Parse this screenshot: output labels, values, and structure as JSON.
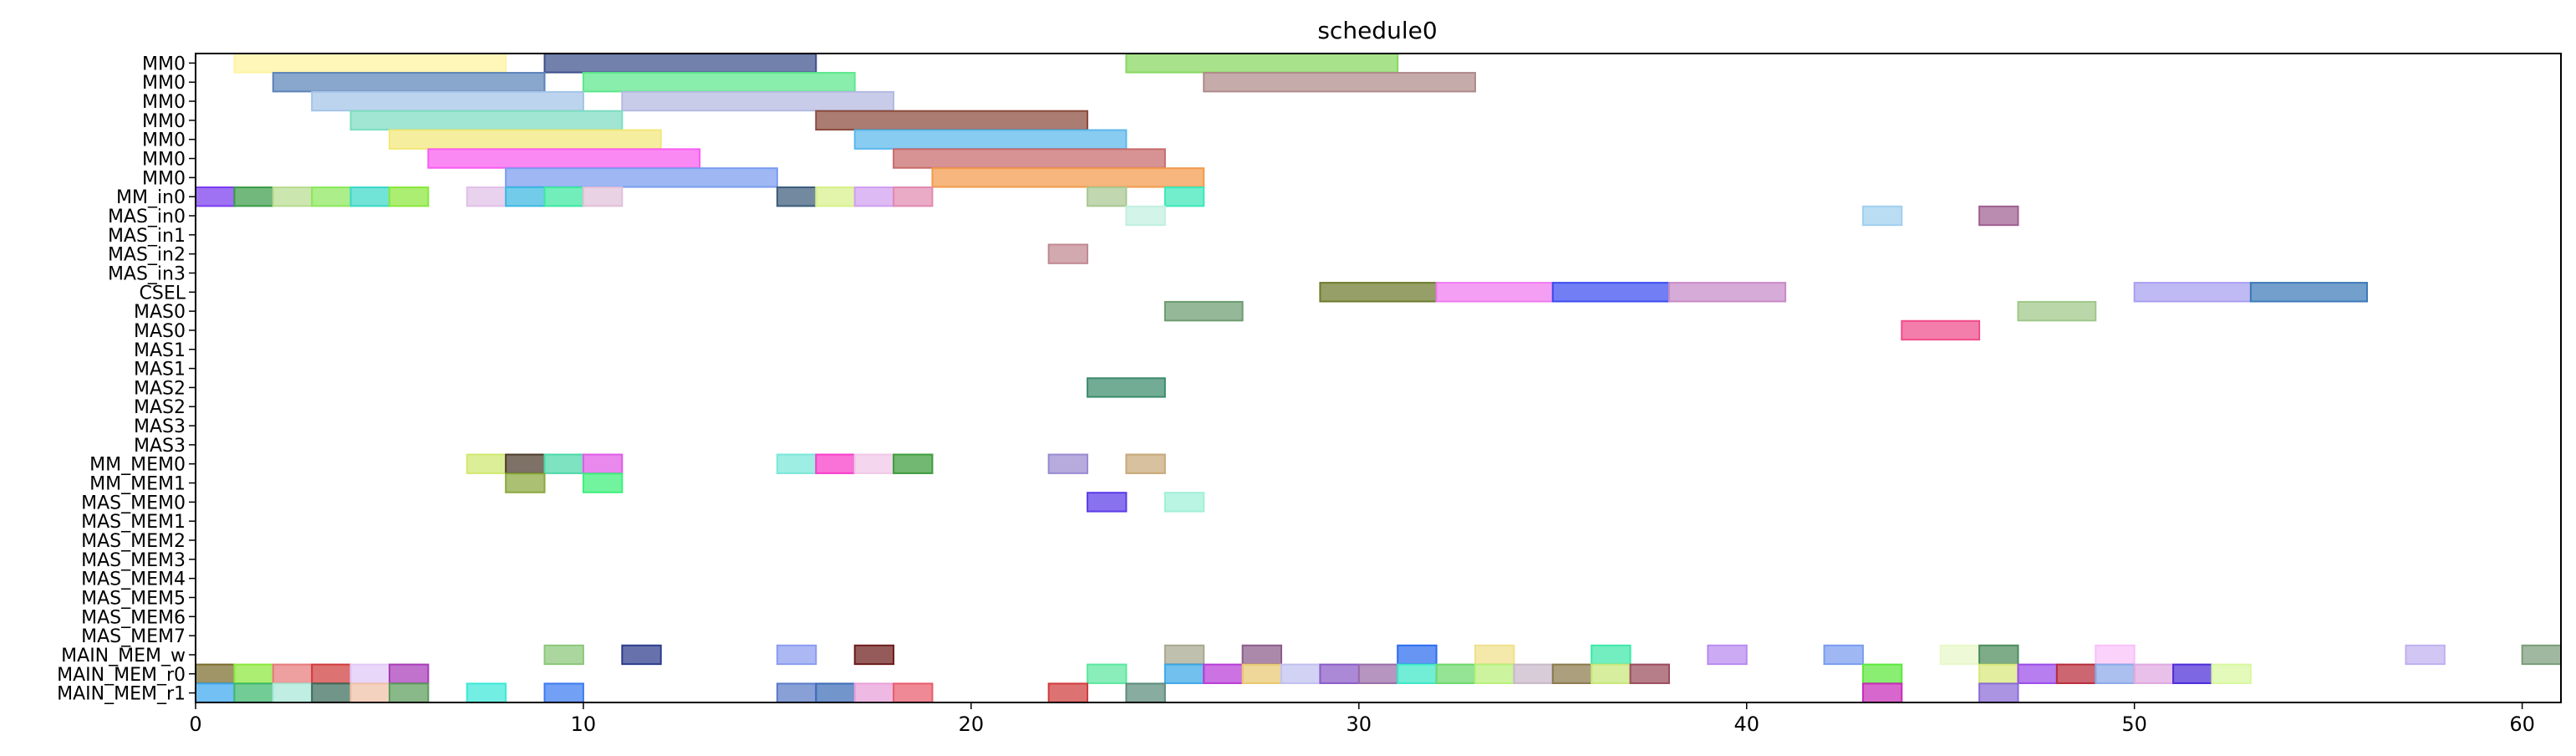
{
  "chart_data": {
    "type": "gantt",
    "title": "schedule0",
    "xlabel": "",
    "ylabel": "",
    "xlim": [
      0,
      61
    ],
    "xticks": [
      0,
      10,
      20,
      30,
      40,
      50,
      60
    ],
    "grid": false,
    "rows": [
      "MM0",
      "MM0",
      "MM0",
      "MM0",
      "MM0",
      "MM0",
      "MM0",
      "MM_in0",
      "MAS_in0",
      "MAS_in1",
      "MAS_in2",
      "MAS_in3",
      "CSEL",
      "MAS0",
      "MAS0",
      "MAS1",
      "MAS1",
      "MAS2",
      "MAS2",
      "MAS3",
      "MAS3",
      "MM_MEM0",
      "MM_MEM1",
      "MAS_MEM0",
      "MAS_MEM1",
      "MAS_MEM2",
      "MAS_MEM3",
      "MAS_MEM4",
      "MAS_MEM5",
      "MAS_MEM6",
      "MAS_MEM7",
      "MAIN_MEM_w",
      "MAIN_MEM_r0",
      "MAIN_MEM_r1"
    ],
    "tasks": [
      {
        "row": 0,
        "start": 1,
        "end": 8,
        "color": "#fff3a0"
      },
      {
        "row": 0,
        "start": 9,
        "end": 16,
        "color": "#3c4f8c"
      },
      {
        "row": 0,
        "start": 24,
        "end": 31,
        "color": "#86d860"
      },
      {
        "row": 1,
        "start": 2,
        "end": 9,
        "color": "#5c84b8"
      },
      {
        "row": 1,
        "start": 10,
        "end": 17,
        "color": "#5be88a"
      },
      {
        "row": 1,
        "start": 26,
        "end": 33,
        "color": "#b08a8a"
      },
      {
        "row": 2,
        "start": 3,
        "end": 10,
        "color": "#a3c4e8"
      },
      {
        "row": 2,
        "start": 11,
        "end": 18,
        "color": "#b3b9e0"
      },
      {
        "row": 3,
        "start": 4,
        "end": 11,
        "color": "#7ddcc0"
      },
      {
        "row": 3,
        "start": 16,
        "end": 23,
        "color": "#8a4a3c"
      },
      {
        "row": 4,
        "start": 5,
        "end": 12,
        "color": "#f2e87a"
      },
      {
        "row": 4,
        "start": 17,
        "end": 24,
        "color": "#5cb8ec"
      },
      {
        "row": 5,
        "start": 6,
        "end": 13,
        "color": "#f95cf0"
      },
      {
        "row": 5,
        "start": 18,
        "end": 25,
        "color": "#c86a6a"
      },
      {
        "row": 6,
        "start": 8,
        "end": 15,
        "color": "#7a9cf0"
      },
      {
        "row": 6,
        "start": 19,
        "end": 26,
        "color": "#f29a4c"
      },
      {
        "row": 7,
        "start": 0,
        "end": 1,
        "color": "#7a3cf0"
      },
      {
        "row": 7,
        "start": 1,
        "end": 2,
        "color": "#3c9c4a"
      },
      {
        "row": 7,
        "start": 2,
        "end": 3,
        "color": "#b8dc90"
      },
      {
        "row": 7,
        "start": 3,
        "end": 4,
        "color": "#8ce85c"
      },
      {
        "row": 7,
        "start": 4,
        "end": 5,
        "color": "#3cd8c8"
      },
      {
        "row": 7,
        "start": 5,
        "end": 6,
        "color": "#8ae83c"
      },
      {
        "row": 7,
        "start": 7,
        "end": 8,
        "color": "#e0c0e8"
      },
      {
        "row": 7,
        "start": 8,
        "end": 9,
        "color": "#3cb8e0"
      },
      {
        "row": 7,
        "start": 9,
        "end": 10,
        "color": "#3ce8a0"
      },
      {
        "row": 7,
        "start": 10,
        "end": 11,
        "color": "#e0c0d8"
      },
      {
        "row": 7,
        "start": 15,
        "end": 16,
        "color": "#3c5c7c"
      },
      {
        "row": 7,
        "start": 16,
        "end": 17,
        "color": "#d8f08a"
      },
      {
        "row": 7,
        "start": 17,
        "end": 18,
        "color": "#d0a0f0"
      },
      {
        "row": 7,
        "start": 18,
        "end": 19,
        "color": "#e08ab0"
      },
      {
        "row": 7,
        "start": 23,
        "end": 24,
        "color": "#a8c890"
      },
      {
        "row": 7,
        "start": 25,
        "end": 26,
        "color": "#3ce8b8"
      },
      {
        "row": 8,
        "start": 24,
        "end": 25,
        "color": "#c0f0e0"
      },
      {
        "row": 8,
        "start": 43,
        "end": 44,
        "color": "#a0d0f0"
      },
      {
        "row": 8,
        "start": 46,
        "end": 47,
        "color": "#a06090"
      },
      {
        "row": 10,
        "start": 22,
        "end": 23,
        "color": "#c08890"
      },
      {
        "row": 12,
        "start": 29,
        "end": 32,
        "color": "#6c7a2c"
      },
      {
        "row": 12,
        "start": 32,
        "end": 35,
        "color": "#f07af0"
      },
      {
        "row": 12,
        "start": 35,
        "end": 38,
        "color": "#3c4cf0"
      },
      {
        "row": 12,
        "start": 38,
        "end": 41,
        "color": "#c88ac8"
      },
      {
        "row": 12,
        "start": 50,
        "end": 53,
        "color": "#a8a0f0"
      },
      {
        "row": 12,
        "start": 53,
        "end": 56,
        "color": "#3c7ab8"
      },
      {
        "row": 13,
        "start": 25,
        "end": 27,
        "color": "#6c9c70"
      },
      {
        "row": 13,
        "start": 47,
        "end": 49,
        "color": "#a0c888"
      },
      {
        "row": 14,
        "start": 44,
        "end": 46,
        "color": "#f04c8a"
      },
      {
        "row": 17,
        "start": 23,
        "end": 25,
        "color": "#3c8c6c"
      },
      {
        "row": 21,
        "start": 7,
        "end": 8,
        "color": "#d0e870"
      },
      {
        "row": 21,
        "start": 8,
        "end": 9,
        "color": "#4c3c2c"
      },
      {
        "row": 21,
        "start": 9,
        "end": 10,
        "color": "#4cd8a8"
      },
      {
        "row": 21,
        "start": 10,
        "end": 11,
        "color": "#e05ce8"
      },
      {
        "row": 21,
        "start": 15,
        "end": 16,
        "color": "#7ae8d8"
      },
      {
        "row": 21,
        "start": 16,
        "end": 17,
        "color": "#f83cc8"
      },
      {
        "row": 21,
        "start": 17,
        "end": 18,
        "color": "#f0c8e8"
      },
      {
        "row": 21,
        "start": 18,
        "end": 19,
        "color": "#3c9c3c"
      },
      {
        "row": 21,
        "start": 22,
        "end": 23,
        "color": "#9a8ad0"
      },
      {
        "row": 21,
        "start": 24,
        "end": 25,
        "color": "#c8a878"
      },
      {
        "row": 22,
        "start": 8,
        "end": 9,
        "color": "#8aa83c"
      },
      {
        "row": 22,
        "start": 10,
        "end": 11,
        "color": "#3cf07a"
      },
      {
        "row": 23,
        "start": 23,
        "end": 24,
        "color": "#5c3ce8"
      },
      {
        "row": 23,
        "start": 25,
        "end": 26,
        "color": "#a0f0d8"
      },
      {
        "row": 31,
        "start": 9,
        "end": 10,
        "color": "#8ac87a"
      },
      {
        "row": 31,
        "start": 11,
        "end": 12,
        "color": "#2c3c8c"
      },
      {
        "row": 31,
        "start": 15,
        "end": 16,
        "color": "#8a9cf0"
      },
      {
        "row": 31,
        "start": 17,
        "end": 18,
        "color": "#6c1c1c"
      },
      {
        "row": 31,
        "start": 25,
        "end": 26,
        "color": "#a8a890"
      },
      {
        "row": 31,
        "start": 27,
        "end": 28,
        "color": "#8a5c8a"
      },
      {
        "row": 31,
        "start": 31,
        "end": 32,
        "color": "#2c6cf0"
      },
      {
        "row": 31,
        "start": 33,
        "end": 34,
        "color": "#f0e08a"
      },
      {
        "row": 31,
        "start": 36,
        "end": 37,
        "color": "#3ce8a8"
      },
      {
        "row": 31,
        "start": 39,
        "end": 40,
        "color": "#b88af0"
      },
      {
        "row": 31,
        "start": 42,
        "end": 43,
        "color": "#7a9cf0"
      },
      {
        "row": 31,
        "start": 45,
        "end": 46,
        "color": "#e8f8c8"
      },
      {
        "row": 31,
        "start": 46,
        "end": 47,
        "color": "#4c8c5c"
      },
      {
        "row": 31,
        "start": 49,
        "end": 50,
        "color": "#f8c0f8"
      },
      {
        "row": 31,
        "start": 57,
        "end": 58,
        "color": "#c0b0f0"
      },
      {
        "row": 31,
        "start": 60,
        "end": 61,
        "color": "#7a9c7a"
      },
      {
        "row": 32,
        "start": 0,
        "end": 1,
        "color": "#7a6c2c"
      },
      {
        "row": 32,
        "start": 1,
        "end": 2,
        "color": "#8ae83c"
      },
      {
        "row": 32,
        "start": 2,
        "end": 3,
        "color": "#e87a7a"
      },
      {
        "row": 32,
        "start": 3,
        "end": 4,
        "color": "#d03c3c"
      },
      {
        "row": 32,
        "start": 4,
        "end": 5,
        "color": "#e0c8f8"
      },
      {
        "row": 32,
        "start": 5,
        "end": 6,
        "color": "#a83cb8"
      },
      {
        "row": 32,
        "start": 23,
        "end": 24,
        "color": "#5ce8a0"
      },
      {
        "row": 32,
        "start": 25,
        "end": 26,
        "color": "#3ca8e8"
      },
      {
        "row": 32,
        "start": 26,
        "end": 27,
        "color": "#b83cd8"
      },
      {
        "row": 32,
        "start": 27,
        "end": 28,
        "color": "#e8c870"
      },
      {
        "row": 32,
        "start": 28,
        "end": 29,
        "color": "#c0c0f0"
      },
      {
        "row": 32,
        "start": 29,
        "end": 30,
        "color": "#8a5cc8"
      },
      {
        "row": 32,
        "start": 30,
        "end": 31,
        "color": "#9a6ca8"
      },
      {
        "row": 32,
        "start": 31,
        "end": 32,
        "color": "#3ce8c8"
      },
      {
        "row": 32,
        "start": 32,
        "end": 33,
        "color": "#6cd86c"
      },
      {
        "row": 32,
        "start": 33,
        "end": 34,
        "color": "#b8f07a"
      },
      {
        "row": 32,
        "start": 34,
        "end": 35,
        "color": "#c8b8c8"
      },
      {
        "row": 32,
        "start": 35,
        "end": 36,
        "color": "#8a7a4c"
      },
      {
        "row": 32,
        "start": 36,
        "end": 37,
        "color": "#c8e87a"
      },
      {
        "row": 32,
        "start": 37,
        "end": 38,
        "color": "#9a4c5c"
      },
      {
        "row": 32,
        "start": 43,
        "end": 44,
        "color": "#5ce83c"
      },
      {
        "row": 32,
        "start": 46,
        "end": 47,
        "color": "#d8e87a"
      },
      {
        "row": 32,
        "start": 47,
        "end": 48,
        "color": "#9a4ce8"
      },
      {
        "row": 32,
        "start": 48,
        "end": 49,
        "color": "#b82c3c"
      },
      {
        "row": 32,
        "start": 49,
        "end": 50,
        "color": "#8aa8e8"
      },
      {
        "row": 32,
        "start": 50,
        "end": 51,
        "color": "#e0a8e0"
      },
      {
        "row": 32,
        "start": 51,
        "end": 52,
        "color": "#4c2cd8"
      },
      {
        "row": 32,
        "start": 52,
        "end": 53,
        "color": "#d8f8a0"
      },
      {
        "row": 33,
        "start": 0,
        "end": 1,
        "color": "#3ca8f0"
      },
      {
        "row": 33,
        "start": 1,
        "end": 2,
        "color": "#3cb86c"
      },
      {
        "row": 33,
        "start": 2,
        "end": 3,
        "color": "#a8e8d8"
      },
      {
        "row": 33,
        "start": 3,
        "end": 4,
        "color": "#3c6c5c"
      },
      {
        "row": 33,
        "start": 4,
        "end": 5,
        "color": "#f0c0a8"
      },
      {
        "row": 33,
        "start": 5,
        "end": 6,
        "color": "#5c9c5c"
      },
      {
        "row": 33,
        "start": 7,
        "end": 8,
        "color": "#3ce8d8"
      },
      {
        "row": 33,
        "start": 9,
        "end": 10,
        "color": "#3c7cf0"
      },
      {
        "row": 33,
        "start": 15,
        "end": 16,
        "color": "#5c7cc8"
      },
      {
        "row": 33,
        "start": 16,
        "end": 17,
        "color": "#3c6cb8"
      },
      {
        "row": 33,
        "start": 17,
        "end": 18,
        "color": "#e8a0d8"
      },
      {
        "row": 33,
        "start": 18,
        "end": 19,
        "color": "#e85c6c"
      },
      {
        "row": 33,
        "start": 22,
        "end": 23,
        "color": "#d03c3c"
      },
      {
        "row": 33,
        "start": 24,
        "end": 25,
        "color": "#5c8c7c"
      },
      {
        "row": 33,
        "start": 43,
        "end": 44,
        "color": "#c82cb8"
      },
      {
        "row": 33,
        "start": 46,
        "end": 47,
        "color": "#8a6cd8"
      }
    ]
  }
}
